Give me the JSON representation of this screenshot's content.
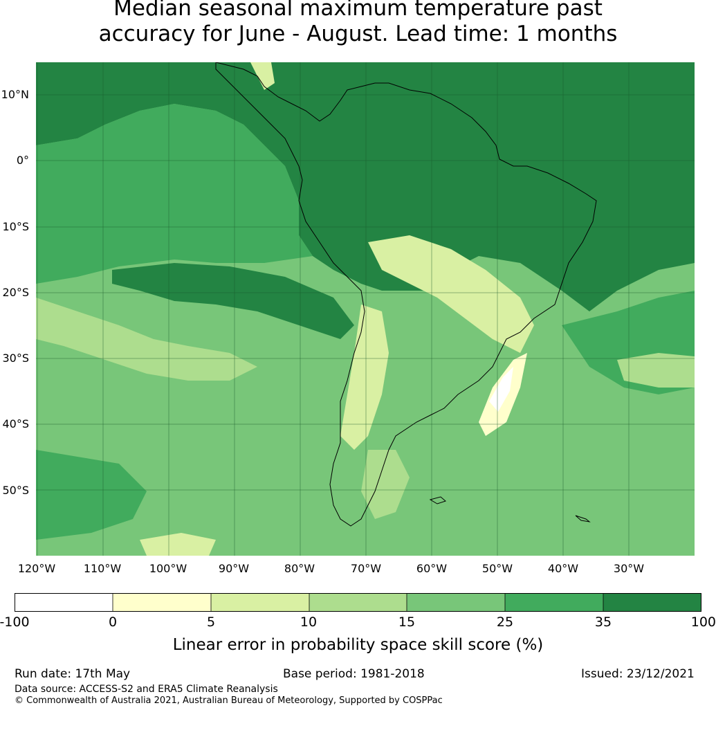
{
  "title": {
    "line1": "Median seasonal maximum temperature past",
    "line2": "accuracy for June - August. Lead time: 1 months"
  },
  "map": {
    "lat_labels": [
      "10°N",
      "0°",
      "10°S",
      "20°S",
      "30°S",
      "40°S",
      "50°S"
    ],
    "lon_labels": [
      "120°W",
      "110°W",
      "100°W",
      "90°W",
      "80°W",
      "70°W",
      "60°W",
      "50°W",
      "40°W",
      "30°W"
    ]
  },
  "legend": {
    "ticks": [
      "-100",
      "0",
      "5",
      "10",
      "15",
      "25",
      "35",
      "100"
    ],
    "colors": [
      "#ffffff",
      "#ffffcc",
      "#d9f0a3",
      "#addd8e",
      "#78c679",
      "#41ab5d",
      "#238443"
    ],
    "label": "Linear error in probability space skill score (%)"
  },
  "footer": {
    "run_date": "Run date: 17th May",
    "base_period": "Base period: 1981-2018",
    "issued": "Issued: 23/12/2021",
    "data_source": "Data source: ACCESS-S2 and ERA5 Climate Reanalysis",
    "copyright": "© Commonwealth of Australia 2021, Australian Bureau of Meteorology, Supported by COSPPac"
  }
}
